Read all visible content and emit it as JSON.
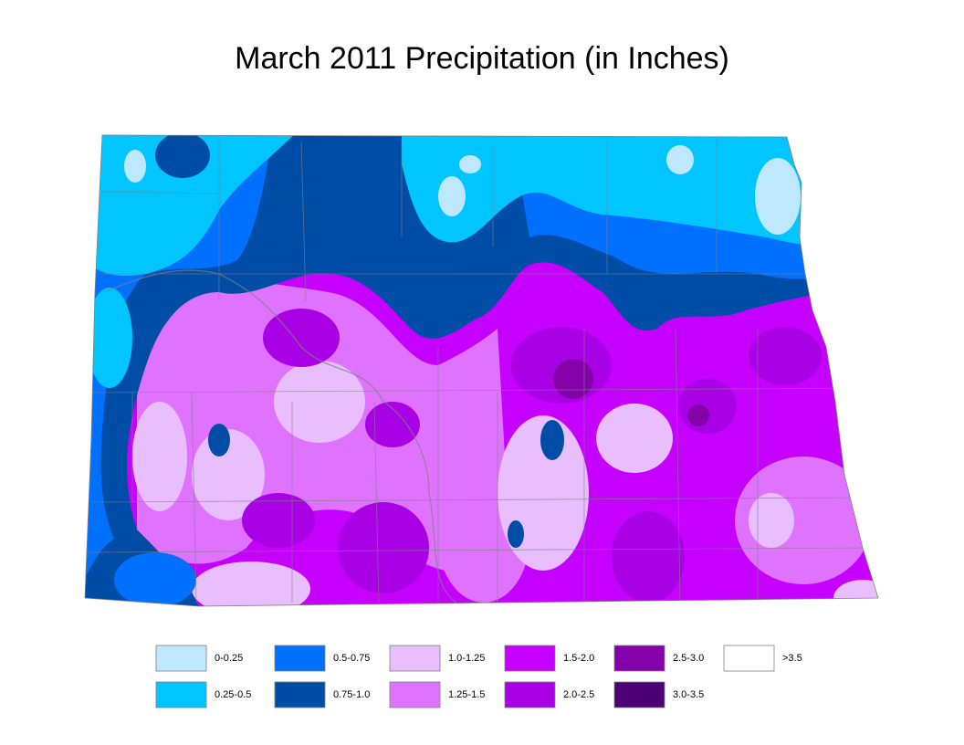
{
  "title": "March 2011 Precipitation (in Inches)",
  "legend": {
    "items": [
      {
        "label": "0-0.25",
        "color": "#bee8ff"
      },
      {
        "label": "0.25-0.5",
        "color": "#00c5ff"
      },
      {
        "label": "0.5-0.75",
        "color": "#0070ff"
      },
      {
        "label": "0.75-1.0",
        "color": "#004da8"
      },
      {
        "label": "1.0-1.25",
        "color": "#e8beff"
      },
      {
        "label": "1.25-1.5",
        "color": "#df73ff"
      },
      {
        "label": "1.5-2.0",
        "color": "#c500ff"
      },
      {
        "label": "2.0-2.5",
        "color": "#a900e6"
      },
      {
        "label": "2.5-3.0",
        "color": "#8400a8"
      },
      {
        "label": "3.0-3.5",
        "color": "#4c0073"
      },
      {
        "label": ">3.5",
        "color": "#ffffff"
      }
    ]
  }
}
